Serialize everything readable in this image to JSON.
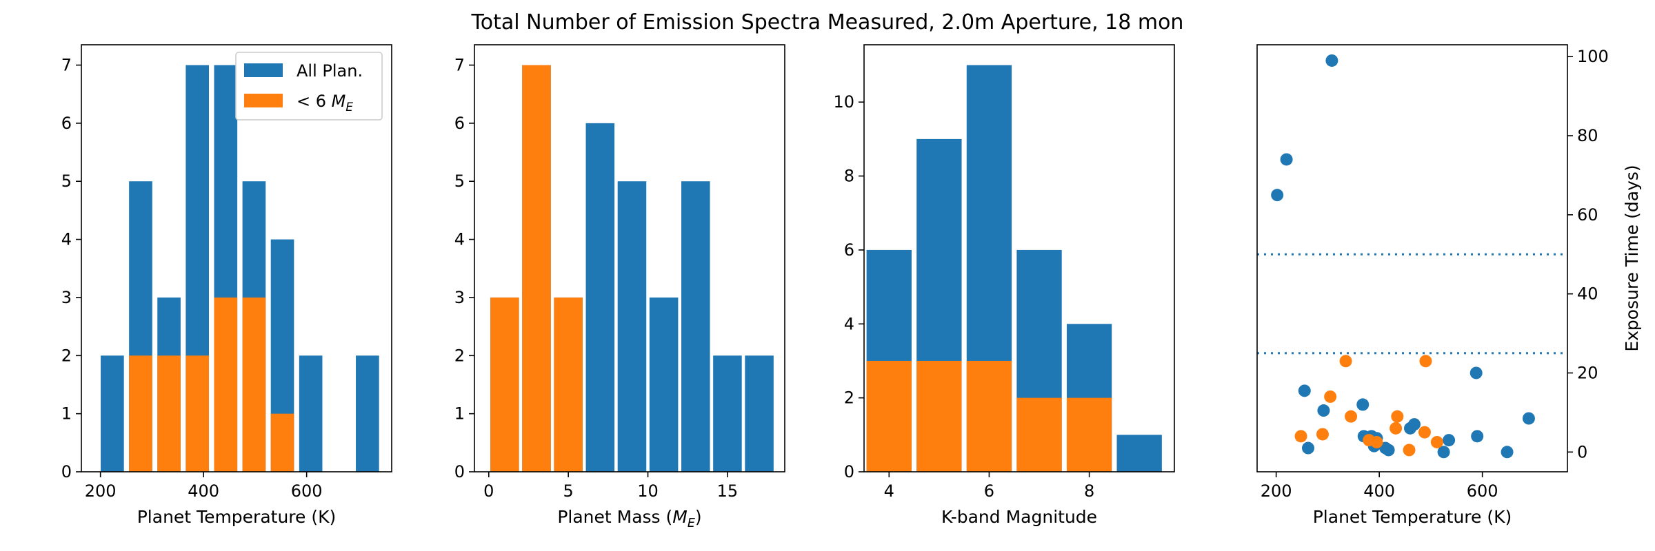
{
  "title": "Total Number of Emission Spectra Measured, 2.0m Aperture, 18 mon",
  "colors": {
    "all": "#1f77b4",
    "small": "#ff7f0e"
  },
  "chart_data": [
    {
      "type": "bar",
      "xlabel": "Planet Temperature (K)",
      "ylabel": "",
      "xlim": [
        163,
        765
      ],
      "ylim": [
        0,
        7.35
      ],
      "xticks": [
        200,
        400,
        600
      ],
      "yticks": [
        0,
        1,
        2,
        3,
        4,
        5,
        6,
        7
      ],
      "bin_width": 45,
      "legend": {
        "placement": "upper-right",
        "entries": [
          "All Plan.",
          "< 6 M_E"
        ]
      },
      "series": [
        {
          "name": "All Plan.",
          "color_key": "all",
          "x": [
            223,
            278,
            333,
            388,
            443,
            498,
            553,
            608,
            663,
            718
          ],
          "values": [
            2,
            5,
            3,
            7,
            7,
            5,
            4,
            2,
            0,
            2
          ]
        },
        {
          "name": "< 6 M_E",
          "color_key": "small",
          "x": [
            223,
            278,
            333,
            388,
            443,
            498,
            553,
            608,
            663,
            718
          ],
          "values": [
            0,
            2,
            2,
            2,
            3,
            3,
            1,
            0,
            0,
            0
          ]
        }
      ]
    },
    {
      "type": "bar",
      "xlabel": "Planet Mass (M_E)",
      "ylabel": "",
      "xlim": [
        -0.9,
        18.6
      ],
      "ylim": [
        0,
        7.35
      ],
      "xticks": [
        0,
        5,
        10,
        15
      ],
      "yticks": [
        0,
        1,
        2,
        3,
        4,
        5,
        6,
        7
      ],
      "bin_width": 1.8,
      "series": [
        {
          "name": "All Plan.",
          "color_key": "all",
          "x": [
            1,
            3,
            5,
            7,
            9,
            11,
            13,
            15,
            17
          ],
          "values": [
            3,
            7,
            3,
            6,
            5,
            3,
            5,
            2,
            2
          ]
        },
        {
          "name": "< 6 M_E",
          "color_key": "small",
          "x": [
            1,
            3,
            5
          ],
          "values": [
            3,
            7,
            3
          ]
        }
      ]
    },
    {
      "type": "bar",
      "xlabel": "K-band Magnitude",
      "ylabel": "",
      "xlim": [
        3.5,
        9.7
      ],
      "ylim": [
        0,
        11.55
      ],
      "xticks": [
        4,
        6,
        8
      ],
      "yticks": [
        0,
        2,
        4,
        6,
        8,
        10
      ],
      "bin_width": 0.9,
      "series": [
        {
          "name": "All Plan.",
          "color_key": "all",
          "x": [
            4,
            5,
            6,
            7,
            8,
            9
          ],
          "values": [
            6,
            9,
            11,
            6,
            4,
            1
          ]
        },
        {
          "name": "< 6 M_E",
          "color_key": "small",
          "x": [
            4,
            5,
            6,
            7,
            8,
            9
          ],
          "values": [
            3,
            3,
            3,
            2,
            2,
            0
          ]
        }
      ]
    },
    {
      "type": "scatter",
      "xlabel": "Planet Temperature (K)",
      "ylabel": "Exposure Time (days)",
      "y_axis_side": "right",
      "xlim": [
        163,
        765
      ],
      "ylim": [
        -5,
        103
      ],
      "xticks": [
        200,
        400,
        600
      ],
      "yticks": [
        0,
        20,
        40,
        60,
        80,
        100
      ],
      "hlines": [
        25,
        50
      ],
      "series": [
        {
          "name": "All Plan.",
          "color_key": "all",
          "points": [
            [
              202,
              65
            ],
            [
              220,
              74
            ],
            [
              308,
              99
            ],
            [
              255,
              15.5
            ],
            [
              262,
              1
            ],
            [
              292,
              10.5
            ],
            [
              368,
              12
            ],
            [
              370,
              4
            ],
            [
              385,
              4
            ],
            [
              390,
              1.5
            ],
            [
              395,
              3.5
            ],
            [
              412,
              1
            ],
            [
              418,
              0.5
            ],
            [
              460,
              6
            ],
            [
              468,
              7
            ],
            [
              525,
              0
            ],
            [
              535,
              3
            ],
            [
              588,
              20
            ],
            [
              590,
              4
            ],
            [
              648,
              0
            ],
            [
              690,
              8.5
            ]
          ]
        },
        {
          "name": "< 6 M_E",
          "color_key": "small",
          "points": [
            [
              248,
              4
            ],
            [
              290,
              4.5
            ],
            [
              305,
              14
            ],
            [
              335,
              23
            ],
            [
              345,
              9
            ],
            [
              380,
              3
            ],
            [
              395,
              2.5
            ],
            [
              432,
              6
            ],
            [
              435,
              9
            ],
            [
              458,
              0.5
            ],
            [
              488,
              5
            ],
            [
              490,
              23
            ],
            [
              512,
              2.5
            ]
          ]
        }
      ]
    }
  ]
}
